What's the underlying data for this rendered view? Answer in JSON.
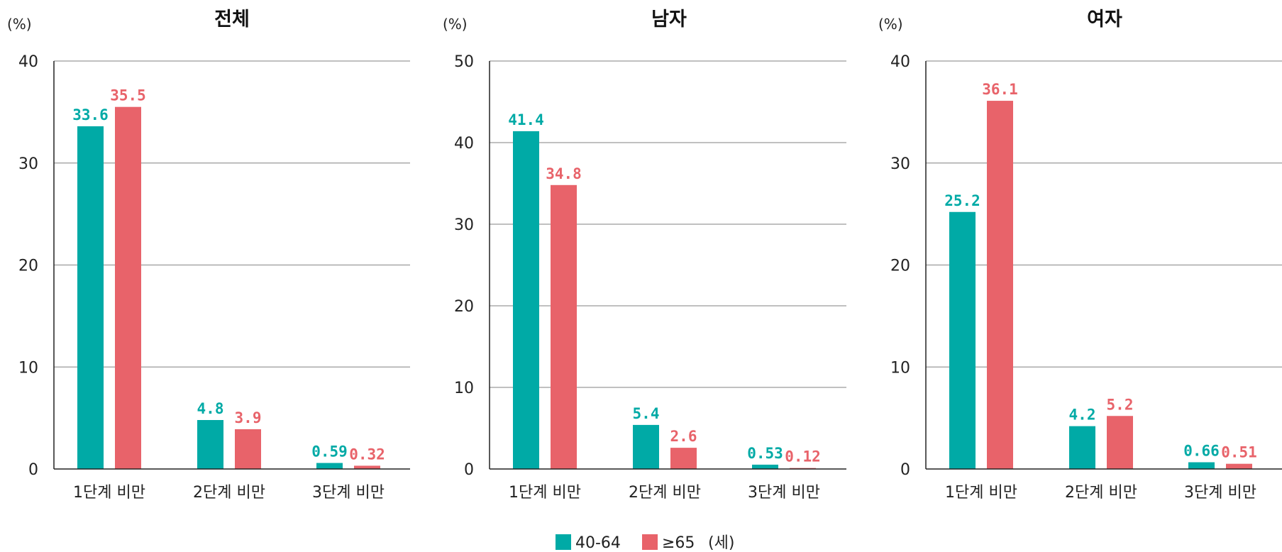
{
  "colors": {
    "series_40_64": "#00AAA6",
    "series_65": "#E8636A",
    "grid": "#9a9a9a",
    "axis": "#222222"
  },
  "legend": {
    "items": [
      "40-64",
      "≥65"
    ],
    "unit": "(세)"
  },
  "chart_data": [
    {
      "type": "bar",
      "title": "전체",
      "ylabel": "(%)",
      "ylim": [
        0,
        40
      ],
      "yticks": [
        0,
        10,
        20,
        30,
        40
      ],
      "grid": true,
      "categories": [
        "1단계 비만",
        "2단계 비만",
        "3단계 비만"
      ],
      "series": [
        {
          "name": "40-64",
          "values": [
            33.6,
            4.8,
            0.59
          ],
          "labels": [
            "33.6",
            "4.8",
            "0.59"
          ]
        },
        {
          "name": "≥65",
          "values": [
            35.5,
            3.9,
            0.32
          ],
          "labels": [
            "35.5",
            "3.9",
            "0.32"
          ]
        }
      ]
    },
    {
      "type": "bar",
      "title": "남자",
      "ylabel": "(%)",
      "ylim": [
        0,
        50
      ],
      "yticks": [
        0,
        10,
        20,
        30,
        40,
        50
      ],
      "grid": true,
      "categories": [
        "1단계 비만",
        "2단계 비만",
        "3단계 비만"
      ],
      "series": [
        {
          "name": "40-64",
          "values": [
            41.4,
            5.4,
            0.53
          ],
          "labels": [
            "41.4",
            "5.4",
            "0.53"
          ]
        },
        {
          "name": "≥65",
          "values": [
            34.8,
            2.6,
            0.12
          ],
          "labels": [
            "34.8",
            "2.6",
            "0.12"
          ]
        }
      ]
    },
    {
      "type": "bar",
      "title": "여자",
      "ylabel": "(%)",
      "ylim": [
        0,
        40
      ],
      "yticks": [
        0,
        10,
        20,
        30,
        40
      ],
      "grid": true,
      "categories": [
        "1단계 비만",
        "2단계 비만",
        "3단계 비만"
      ],
      "series": [
        {
          "name": "40-64",
          "values": [
            25.2,
            4.2,
            0.66
          ],
          "labels": [
            "25.2",
            "4.2",
            "0.66"
          ]
        },
        {
          "name": "≥65",
          "values": [
            36.1,
            5.2,
            0.51
          ],
          "labels": [
            "36.1",
            "5.2",
            "0.51"
          ]
        }
      ]
    }
  ]
}
